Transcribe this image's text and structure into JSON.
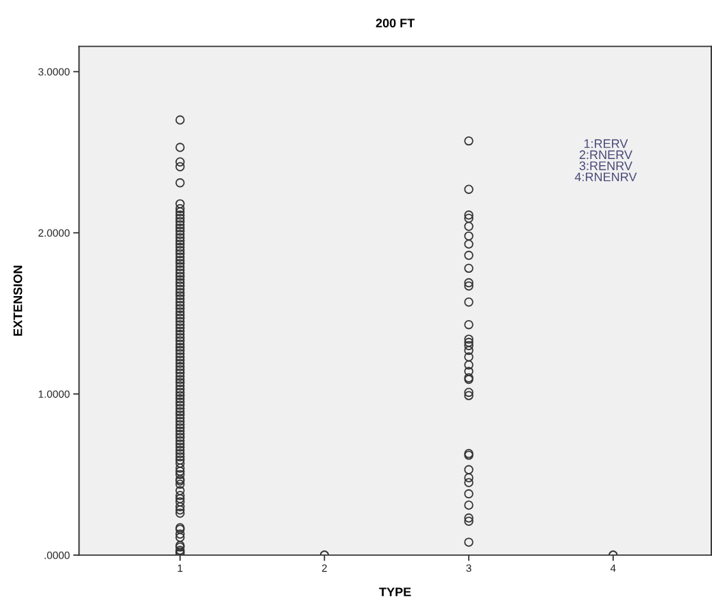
{
  "chart_data": {
    "type": "scatter",
    "title": "200 FT",
    "xlabel": "TYPE",
    "ylabel": "EXTENSION",
    "xlim": [
      0.3,
      4.68
    ],
    "xticks": [
      1,
      2,
      3,
      4
    ],
    "ylim": [
      0,
      3.157
    ],
    "yticks": [
      {
        "value": 0,
        "label": ".0000"
      },
      {
        "value": 1,
        "label": "1.0000"
      },
      {
        "value": 2,
        "label": "2.0000"
      },
      {
        "value": 3,
        "label": "3.0000"
      }
    ],
    "grid": false,
    "legend": false,
    "marker": "circle",
    "annotations": [
      "1:RERV\n2:RNERV\n3:RENRV\n4:RNENRV"
    ],
    "series": [
      {
        "color": "#333333",
        "x": [
          1,
          1,
          1,
          1,
          1,
          1,
          1,
          1,
          1,
          1,
          1,
          1,
          1,
          1,
          1,
          1,
          1,
          1,
          1,
          1,
          1,
          1,
          1,
          1,
          1,
          1,
          1,
          1,
          1,
          1,
          1,
          1,
          1,
          1,
          1,
          1,
          1,
          1,
          1,
          1,
          1,
          1,
          1,
          1,
          1,
          1,
          1,
          1,
          1,
          1,
          1,
          1,
          1,
          1,
          1,
          1,
          1,
          1,
          1,
          1,
          1,
          1,
          1,
          1,
          1,
          1,
          1,
          1,
          1,
          1,
          1,
          1,
          1,
          1,
          1,
          1,
          1,
          1,
          1,
          1,
          1,
          1,
          1,
          1,
          1,
          1,
          1,
          1,
          1,
          1,
          1,
          1,
          1,
          1,
          1,
          1,
          1,
          1,
          1,
          1,
          1,
          1,
          1,
          1,
          1,
          1,
          1,
          1
        ],
        "values": [
          0.01,
          0.02,
          0.03,
          0.05,
          0.06,
          0.11,
          0.13,
          0.16,
          0.17,
          0.26,
          0.28,
          0.3,
          0.33,
          0.35,
          0.37,
          0.4,
          0.44,
          0.46,
          0.47,
          0.5,
          0.52,
          0.54,
          0.57,
          0.59,
          0.61,
          0.63,
          0.65,
          0.67,
          0.69,
          0.71,
          0.73,
          0.75,
          0.77,
          0.79,
          0.81,
          0.83,
          0.85,
          0.87,
          0.89,
          0.91,
          0.93,
          0.95,
          0.97,
          0.99,
          1.01,
          1.03,
          1.05,
          1.07,
          1.09,
          1.11,
          1.13,
          1.15,
          1.17,
          1.19,
          1.21,
          1.23,
          1.25,
          1.27,
          1.29,
          1.31,
          1.33,
          1.35,
          1.37,
          1.39,
          1.41,
          1.43,
          1.45,
          1.47,
          1.49,
          1.51,
          1.53,
          1.55,
          1.57,
          1.59,
          1.61,
          1.63,
          1.65,
          1.67,
          1.69,
          1.71,
          1.73,
          1.75,
          1.77,
          1.79,
          1.81,
          1.83,
          1.85,
          1.87,
          1.89,
          1.91,
          1.93,
          1.95,
          1.97,
          1.99,
          2.01,
          2.03,
          2.05,
          2.07,
          2.09,
          2.11,
          2.13,
          2.15,
          2.18,
          2.31,
          2.41,
          2.44,
          2.53,
          2.7
        ]
      },
      {
        "color": "#333333",
        "x": [
          2,
          2
        ],
        "values": [
          0,
          0
        ]
      },
      {
        "color": "#333333",
        "x": [
          3,
          3,
          3,
          3,
          3,
          3,
          3,
          3,
          3,
          3,
          3,
          3,
          3,
          3,
          3,
          3,
          3,
          3,
          3,
          3,
          3,
          3,
          3,
          3,
          3,
          3,
          3,
          3,
          3,
          3,
          3,
          3,
          3,
          3
        ],
        "values": [
          2.57,
          2.27,
          2.11,
          2.09,
          2.04,
          1.98,
          1.93,
          1.86,
          1.78,
          1.69,
          1.67,
          1.57,
          1.43,
          1.34,
          1.32,
          1.3,
          1.27,
          1.23,
          1.18,
          1.14,
          1.1,
          1.09,
          1.01,
          0.99,
          0.63,
          0.62,
          0.53,
          0.48,
          0.45,
          0.38,
          0.31,
          0.23,
          0.21,
          0.08
        ]
      },
      {
        "color": "#333333",
        "x": [
          4,
          4
        ],
        "values": [
          0,
          0
        ]
      }
    ]
  }
}
